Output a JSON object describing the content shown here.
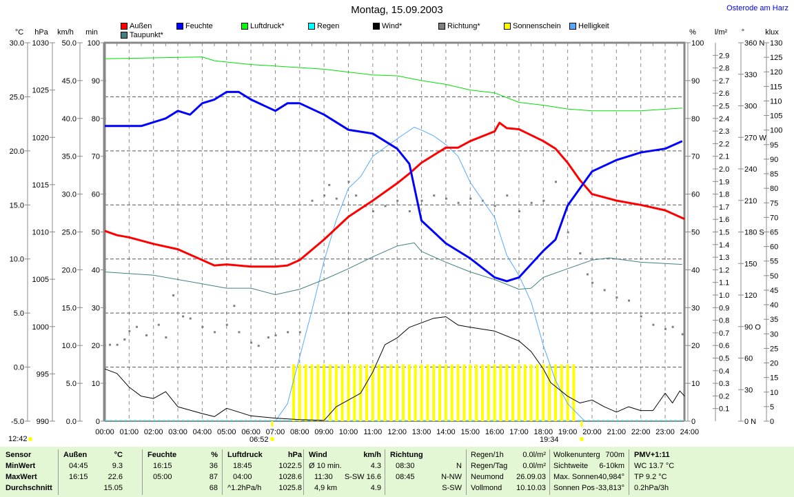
{
  "title": "Montag, 15.09.2003",
  "location": "Osterode am Harz",
  "legend": [
    {
      "label": "Außen",
      "color": "#ff0000"
    },
    {
      "label": "Feuchte",
      "color": "#0000ff"
    },
    {
      "label": "Luftdruck*",
      "color": "#00ff00"
    },
    {
      "label": "Regen",
      "color": "#00ffff"
    },
    {
      "label": "Wind*",
      "color": "#000000"
    },
    {
      "label": "Richtung*",
      "color": "#808080"
    },
    {
      "label": "Sonnenschein",
      "color": "#ffff00"
    },
    {
      "label": "Helligkeit",
      "color": "#55aaff"
    },
    {
      "label": "Taupunkt*",
      "color": "#408080"
    }
  ],
  "axis_units": {
    "temp": "°C",
    "press": "hPa",
    "wind": "km/h",
    "sun": "min",
    "hum": "%",
    "rain": "l/m²",
    "dir": "°",
    "lux": "klux"
  },
  "sun_times": {
    "day_length": "12:42",
    "sunrise": "06:52",
    "sunset": "19:34"
  },
  "chart_data": {
    "type": "line",
    "title": "Montag, 15.09.2003",
    "x_ticks": [
      "00:00",
      "01:00",
      "02:00",
      "03:00",
      "04:00",
      "05:00",
      "06:00",
      "07:00",
      "08:00",
      "09:00",
      "10:00",
      "11:00",
      "12:00",
      "13:00",
      "14:00",
      "15:00",
      "16:00",
      "17:00",
      "18:00",
      "19:00",
      "20:00",
      "21:00",
      "22:00",
      "23:00",
      "24:00"
    ],
    "axes": {
      "temp": {
        "range": [
          -5,
          30
        ],
        "step": 5,
        "dec": 1
      },
      "press": {
        "range": [
          990,
          1030
        ],
        "step": 5,
        "dec": 0
      },
      "wind": {
        "range": [
          0,
          50
        ],
        "step": 5,
        "dec": 1
      },
      "sun": {
        "range": [
          0,
          100
        ],
        "step": 10,
        "dec": 0
      },
      "hum": {
        "range": [
          0,
          100
        ],
        "step": 10,
        "dec": 0
      },
      "rain": {
        "range": [
          0,
          3
        ],
        "step": 0.1,
        "dec": 1
      },
      "dir": {
        "range": [
          0,
          360
        ],
        "step": 30,
        "dec": 0,
        "labels": {
          "360": "360 N",
          "270": "270 W",
          "180": "180 S",
          "90": "90 O",
          "0": "0 N"
        }
      },
      "lux": {
        "range": [
          0,
          130
        ],
        "step": 5,
        "dec": 0
      }
    },
    "grid": true,
    "series": [
      {
        "name": "Helligkeit",
        "axis": "lux",
        "color": "#55aaff",
        "width": 1,
        "points": [
          [
            7,
            0
          ],
          [
            7.5,
            6
          ],
          [
            8,
            22
          ],
          [
            8.5,
            38
          ],
          [
            9,
            55
          ],
          [
            9.5,
            69
          ],
          [
            10,
            80
          ],
          [
            10.5,
            84
          ],
          [
            11,
            91
          ],
          [
            11.5,
            94
          ],
          [
            12,
            97
          ],
          [
            12.7,
            101
          ],
          [
            13,
            100
          ],
          [
            13.5,
            98
          ],
          [
            14,
            95
          ],
          [
            14.5,
            91
          ],
          [
            15,
            82
          ],
          [
            15.5,
            76
          ],
          [
            16,
            70
          ],
          [
            16.5,
            57
          ],
          [
            17,
            50
          ],
          [
            17.5,
            41
          ],
          [
            18,
            26
          ],
          [
            18.5,
            14
          ],
          [
            19,
            6
          ],
          [
            19.7,
            0
          ]
        ]
      },
      {
        "name": "Luftdruck*",
        "axis": "press",
        "color": "#00e000",
        "width": 1,
        "points": [
          [
            0,
            1028.3
          ],
          [
            4,
            1028.5
          ],
          [
            4.5,
            1028.1
          ],
          [
            6,
            1027.7
          ],
          [
            9,
            1027.2
          ],
          [
            11,
            1026.6
          ],
          [
            12,
            1026.5
          ],
          [
            13,
            1026.0
          ],
          [
            14,
            1025.6
          ],
          [
            15,
            1025.0
          ],
          [
            16,
            1024.7
          ],
          [
            17,
            1023.7
          ],
          [
            18,
            1023.4
          ],
          [
            19,
            1023.0
          ],
          [
            20,
            1022.8
          ],
          [
            22,
            1022.8
          ],
          [
            23.7,
            1023.1
          ]
        ]
      },
      {
        "name": "Taupunkt*",
        "axis": "temp",
        "color": "#408080",
        "width": 1,
        "points": [
          [
            0,
            8.8
          ],
          [
            2,
            8.5
          ],
          [
            4,
            7.7
          ],
          [
            5,
            7.3
          ],
          [
            6,
            7.3
          ],
          [
            7,
            6.7
          ],
          [
            8,
            7.2
          ],
          [
            9,
            8.1
          ],
          [
            10,
            9.1
          ],
          [
            11,
            10.2
          ],
          [
            12,
            11.2
          ],
          [
            12.7,
            11.5
          ],
          [
            13,
            10.7
          ],
          [
            14,
            9.7
          ],
          [
            15,
            8.8
          ],
          [
            16,
            8.1
          ],
          [
            17,
            7.2
          ],
          [
            17.5,
            7.3
          ],
          [
            18,
            8.3
          ],
          [
            19,
            9.1
          ],
          [
            20,
            9.9
          ],
          [
            20.7,
            10.1
          ],
          [
            22,
            9.7
          ],
          [
            23.7,
            9.5
          ]
        ]
      },
      {
        "name": "Wind*",
        "axis": "wind",
        "color": "#000000",
        "width": 1,
        "points": [
          [
            0,
            6.9
          ],
          [
            0.5,
            6.3
          ],
          [
            1,
            4.5
          ],
          [
            1.5,
            3.3
          ],
          [
            2,
            3.0
          ],
          [
            2.5,
            3.9
          ],
          [
            3,
            1.9
          ],
          [
            4,
            1.0
          ],
          [
            4.5,
            0.6
          ],
          [
            5,
            1.7
          ],
          [
            6,
            0.7
          ],
          [
            7,
            0.4
          ],
          [
            8,
            0.2
          ],
          [
            9,
            0.1
          ],
          [
            9.5,
            1.9
          ],
          [
            10,
            2.8
          ],
          [
            10.5,
            3.7
          ],
          [
            11,
            6.5
          ],
          [
            11.5,
            10.1
          ],
          [
            12,
            11.0
          ],
          [
            12.5,
            12.4
          ],
          [
            13,
            13.0
          ],
          [
            13.5,
            13.6
          ],
          [
            14,
            13.8
          ],
          [
            14.5,
            12.7
          ],
          [
            15,
            12.4
          ],
          [
            16,
            11.9
          ],
          [
            17,
            10.6
          ],
          [
            17.5,
            9.2
          ],
          [
            18,
            6.9
          ],
          [
            18.3,
            5.1
          ],
          [
            19,
            3.3
          ],
          [
            19.5,
            2.4
          ],
          [
            20,
            2.8
          ],
          [
            20.5,
            1.9
          ],
          [
            21,
            1.2
          ],
          [
            21.5,
            1.9
          ],
          [
            22,
            1.4
          ],
          [
            22.5,
            1.4
          ],
          [
            23,
            3.7
          ],
          [
            23.3,
            2.4
          ],
          [
            23.6,
            4.0
          ],
          [
            23.8,
            3.3
          ]
        ]
      },
      {
        "name": "Außen",
        "axis": "temp",
        "color": "#ff0000",
        "width": 3,
        "points": [
          [
            0,
            12.6
          ],
          [
            0.5,
            12.2
          ],
          [
            1,
            12.0
          ],
          [
            2,
            11.4
          ],
          [
            3,
            10.9
          ],
          [
            4,
            9.9
          ],
          [
            4.5,
            9.4
          ],
          [
            5,
            9.5
          ],
          [
            6,
            9.3
          ],
          [
            7,
            9.3
          ],
          [
            7.5,
            9.4
          ],
          [
            8,
            9.9
          ],
          [
            9,
            11.8
          ],
          [
            10,
            13.9
          ],
          [
            11,
            15.4
          ],
          [
            12,
            17.0
          ],
          [
            12.5,
            17.9
          ],
          [
            13,
            18.9
          ],
          [
            13.5,
            19.6
          ],
          [
            14,
            20.3
          ],
          [
            14.5,
            20.3
          ],
          [
            15,
            20.9
          ],
          [
            16,
            21.8
          ],
          [
            16.2,
            22.6
          ],
          [
            16.5,
            22.1
          ],
          [
            17,
            22.0
          ],
          [
            18,
            20.9
          ],
          [
            18.5,
            20.2
          ],
          [
            19,
            18.9
          ],
          [
            19.5,
            17.3
          ],
          [
            20,
            16.0
          ],
          [
            21,
            15.4
          ],
          [
            22,
            15.0
          ],
          [
            23,
            14.5
          ],
          [
            23.8,
            13.7
          ]
        ]
      },
      {
        "name": "Feuchte",
        "axis": "hum",
        "color": "#0000ff",
        "width": 3,
        "points": [
          [
            0,
            78
          ],
          [
            1.5,
            78
          ],
          [
            2,
            79
          ],
          [
            2.5,
            80
          ],
          [
            3,
            82
          ],
          [
            3.5,
            81
          ],
          [
            4,
            84
          ],
          [
            4.5,
            85
          ],
          [
            5,
            87
          ],
          [
            5.5,
            87
          ],
          [
            6,
            85
          ],
          [
            7,
            82
          ],
          [
            7.5,
            84
          ],
          [
            8,
            84
          ],
          [
            9,
            81
          ],
          [
            10,
            77
          ],
          [
            11,
            76
          ],
          [
            12,
            72
          ],
          [
            12.5,
            68
          ],
          [
            13,
            53
          ],
          [
            14,
            47
          ],
          [
            15,
            43
          ],
          [
            16,
            38
          ],
          [
            16.5,
            37
          ],
          [
            17,
            38
          ],
          [
            18,
            45
          ],
          [
            18.5,
            48
          ],
          [
            19,
            57
          ],
          [
            20,
            66
          ],
          [
            21,
            69
          ],
          [
            22,
            71
          ],
          [
            23,
            72
          ],
          [
            23.7,
            74
          ]
        ]
      }
    ],
    "richtung": {
      "name": "Richtung*",
      "axis": "dir",
      "color": "#808080",
      "points": [
        [
          0.2,
          73
        ],
        [
          0.5,
          73
        ],
        [
          0.8,
          78
        ],
        [
          1,
          86
        ],
        [
          1.3,
          90
        ],
        [
          1.7,
          82
        ],
        [
          2.2,
          92
        ],
        [
          2.5,
          80
        ],
        [
          2.8,
          120
        ],
        [
          3.2,
          100
        ],
        [
          3.5,
          98
        ],
        [
          4,
          90
        ],
        [
          4.5,
          85
        ],
        [
          5,
          92
        ],
        [
          5.3,
          110
        ],
        [
          5.5,
          85
        ],
        [
          6,
          75
        ],
        [
          6.3,
          72
        ],
        [
          6.7,
          80
        ],
        [
          7,
          82
        ],
        [
          7.5,
          85
        ],
        [
          8,
          85
        ],
        [
          8.5,
          210
        ],
        [
          9,
          215
        ],
        [
          9.2,
          225
        ],
        [
          9.5,
          212
        ],
        [
          10,
          228
        ],
        [
          10.3,
          215
        ],
        [
          10.7,
          205
        ],
        [
          11,
          200
        ],
        [
          11.5,
          205
        ],
        [
          12,
          210
        ],
        [
          12.5,
          200
        ],
        [
          13,
          210
        ],
        [
          13.5,
          215
        ],
        [
          14,
          212
        ],
        [
          14.5,
          208
        ],
        [
          15,
          212
        ],
        [
          15.5,
          210
        ],
        [
          16,
          205
        ],
        [
          16.5,
          215
        ],
        [
          17,
          200
        ],
        [
          17.5,
          208
        ],
        [
          18,
          210
        ],
        [
          18.5,
          228
        ],
        [
          19,
          180
        ],
        [
          19.5,
          160
        ],
        [
          19.8,
          140
        ],
        [
          20,
          132
        ],
        [
          20.5,
          125
        ],
        [
          21,
          118
        ],
        [
          21.5,
          115
        ],
        [
          22,
          100
        ],
        [
          22.5,
          92
        ],
        [
          23,
          88
        ],
        [
          23.3,
          90
        ],
        [
          23.7,
          83
        ]
      ]
    },
    "sonnenschein": {
      "name": "Sonnenschein",
      "axis": "sun",
      "color": "#ffff00",
      "interval_hours": 0.25,
      "start": 7.75,
      "end": 19.25,
      "value": 15
    },
    "regen": {
      "name": "Regen",
      "axis": "rain",
      "color": "#00ffff",
      "value": 0
    }
  },
  "stats": {
    "sensor": {
      "h": "Sensor",
      "rows": [
        "MinWert",
        "MaxWert",
        "Durchschnitt"
      ]
    },
    "aussen": {
      "h": "Außen",
      "u": "°C",
      "t": [
        "04:45",
        "16:15",
        ""
      ],
      "v": [
        "9.3",
        "22.6",
        "15.05"
      ]
    },
    "feuchte": {
      "h": "Feuchte",
      "u": "%",
      "t": [
        "16:15",
        "05:00",
        ""
      ],
      "v": [
        "36",
        "87",
        "68"
      ]
    },
    "luftdruck": {
      "h": "Luftdruck",
      "u": "hPa",
      "t": [
        "18:45",
        "04:00",
        "^1.2hPa/h"
      ],
      "v": [
        "1022.5",
        "1028.6",
        "1025.8"
      ]
    },
    "wind": {
      "h": "Wind",
      "u": "km/h",
      "t": [
        "Ø 10 min.",
        "11:30",
        "4,9 km"
      ],
      "v": [
        "4.3",
        "S-SW 16.6",
        "4.9"
      ]
    },
    "richtung": {
      "h": "Richtung",
      "u": "",
      "t": [
        "08:30",
        "08:45",
        ""
      ],
      "v": [
        "N",
        "N-NW",
        "S-SW"
      ]
    },
    "regen": {
      "t": [
        "Regen/1h",
        "Regen/Tag",
        "Neumond",
        "Vollmond"
      ],
      "v": [
        "0.0l/m²",
        "0.0l/m²",
        "26.09.03",
        "10.10.03"
      ]
    },
    "wolken": {
      "t": [
        "Wolkenunterg",
        "Sichtweite",
        "Max. Sonnen",
        "Sonnen Pos"
      ],
      "v": [
        "700m",
        "6-10km",
        "40,984°",
        "-33,813°"
      ]
    },
    "pmv": {
      "rows": [
        "PMV+1:11",
        "WC 13.7 °C",
        "TP 9.2 °C",
        "0.2hPa/3h"
      ]
    }
  }
}
